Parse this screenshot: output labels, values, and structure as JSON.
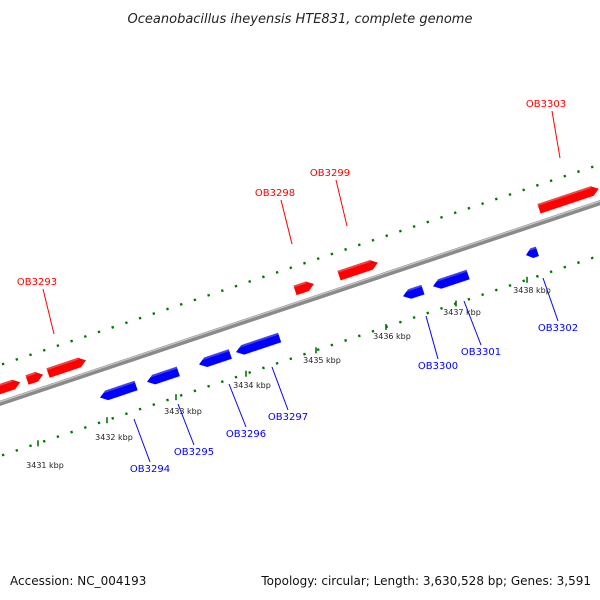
{
  "title": "Oceanobacillus iheyensis HTE831, complete genome",
  "footer": {
    "accession": "Accession: NC_004193",
    "summary": "Topology: circular; Length: 3,630,528 bp; Genes: 3,591"
  },
  "colors": {
    "forward": "#ff0000",
    "reverse": "#0000ff",
    "tick": "#007700",
    "backbone": "#888888"
  },
  "forward_genes": [
    {
      "label": "OB3293"
    },
    {
      "label": "OB3298"
    },
    {
      "label": "OB3299"
    },
    {
      "label": "OB3303"
    }
  ],
  "reverse_genes": [
    {
      "label": "OB3294"
    },
    {
      "label": "OB3295"
    },
    {
      "label": "OB3296"
    },
    {
      "label": "OB3297"
    },
    {
      "label": "OB3300"
    },
    {
      "label": "OB3301"
    },
    {
      "label": "OB3302"
    }
  ],
  "kbp_ticks": [
    "3431 kbp",
    "3432 kbp",
    "3433 kbp",
    "3434 kbp",
    "3435 kbp",
    "3436 kbp",
    "3437 kbp",
    "3438 kbp"
  ]
}
